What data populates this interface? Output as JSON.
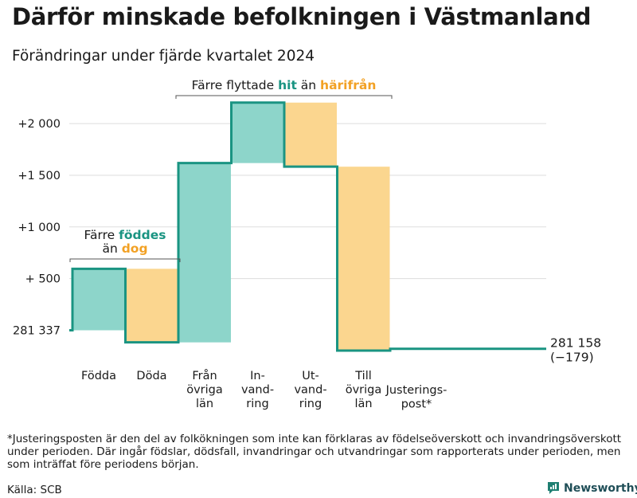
{
  "title": "Därför minskade befolkningen i Västmanland",
  "subtitle": "Förändringar under fjärde kvartalet 2024",
  "footnote": "*Justeringsposten är den del av folkökningen som inte kan förklaras av födelseöverskott och invandringsöverskott under perioden. Där ingår födslar, dödsfall, invandringar och utvandringar som rapporterats under perioden, men som inträffat före periodens början.",
  "source": "Källa: SCB",
  "brand": "Newsworthy",
  "colors": {
    "teal": "#1a9482",
    "teal_fill": "#8dd5ca",
    "orange": "#f2a124",
    "orange_fill": "#fbd68f",
    "grid": "#dddddd"
  },
  "chart_data": {
    "type": "waterfall",
    "start_value": 281337,
    "start_label": "281 337",
    "end_value": 281158,
    "end_label": "281 158",
    "change_label": "(−179)",
    "ylim": [
      -250,
      2300
    ],
    "y_ticks": [
      {
        "value": 500,
        "label": "+  500"
      },
      {
        "value": 1000,
        "label": "+1 000"
      },
      {
        "value": 1500,
        "label": "+1 500"
      },
      {
        "value": 2000,
        "label": "+2 000"
      }
    ],
    "steps": [
      {
        "label": [
          "Födda"
        ],
        "delta": 595,
        "kind": "increase"
      },
      {
        "label": [
          "Döda"
        ],
        "delta": -712,
        "kind": "decrease"
      },
      {
        "label": [
          "Från",
          "övriga",
          "län"
        ],
        "delta": 1735,
        "kind": "increase"
      },
      {
        "label": [
          "In-",
          "vand-",
          "ring"
        ],
        "delta": 585,
        "kind": "increase"
      },
      {
        "label": [
          "Ut-",
          "vand-",
          "ring"
        ],
        "delta": -620,
        "kind": "decrease"
      },
      {
        "label": [
          "Till",
          "övriga",
          "län"
        ],
        "delta": -1780,
        "kind": "decrease"
      },
      {
        "label": [
          "Justerings-",
          "post*"
        ],
        "delta": 18,
        "kind": "adjustment"
      }
    ],
    "annotations": [
      {
        "parts": [
          [
            "Färre ",
            "plain"
          ],
          [
            "föddes",
            "teal"
          ]
        ],
        "parts2": [
          [
            "än ",
            "plain"
          ],
          [
            "dog",
            "orange"
          ]
        ],
        "from_step": 0,
        "to_step": 1
      },
      {
        "parts": [
          [
            "Färre flyttade ",
            "plain"
          ],
          [
            "hit",
            "teal"
          ],
          [
            " än ",
            "plain"
          ],
          [
            "härifrån",
            "orange"
          ]
        ],
        "from_step": 2,
        "to_step": 5
      }
    ]
  }
}
